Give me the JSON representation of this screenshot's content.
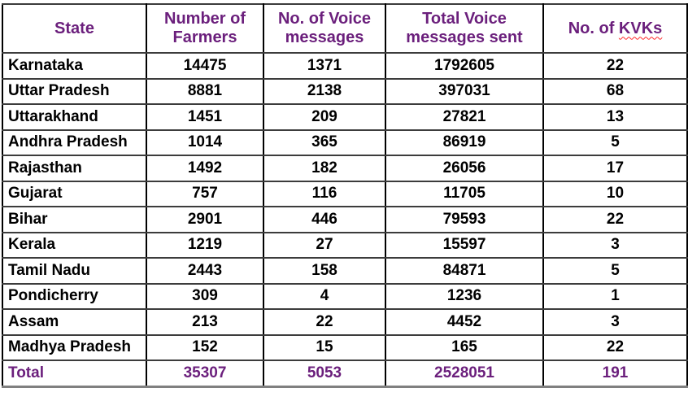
{
  "chart_data": {
    "type": "table",
    "columns": [
      "State",
      "Number of Farmers",
      "No. of Voice messages",
      "Total Voice messages sent",
      "No. of KVKs"
    ],
    "rows": [
      [
        "Karnataka",
        "14475",
        "1371",
        "1792605",
        "22"
      ],
      [
        "Uttar Pradesh",
        "8881",
        "2138",
        "397031",
        "68"
      ],
      [
        "Uttarakhand",
        "1451",
        "209",
        "27821",
        "13"
      ],
      [
        "Andhra Pradesh",
        "1014",
        "365",
        "86919",
        "5"
      ],
      [
        "Rajasthan",
        "1492",
        "182",
        "26056",
        "17"
      ],
      [
        "Gujarat",
        "757",
        "116",
        "11705",
        "10"
      ],
      [
        "Bihar",
        "2901",
        "446",
        "79593",
        "22"
      ],
      [
        "Kerala",
        "1219",
        "27",
        "15597",
        "3"
      ],
      [
        "Tamil Nadu",
        "2443",
        "158",
        "84871",
        "5"
      ],
      [
        "Pondicherry",
        "309",
        "4",
        "1236",
        "1"
      ],
      [
        "Assam",
        "213",
        "22",
        "4452",
        "3"
      ],
      [
        "Madhya Pradesh",
        "152",
        "15",
        "165",
        "22"
      ]
    ],
    "total_row": [
      "Total",
      "35307",
      "5053",
      "2528051",
      "191"
    ]
  },
  "header_kvks": {
    "prefix": "No. of ",
    "word": "KVKs"
  },
  "colors": {
    "header_text": "#6b1f7c",
    "total_text": "#6b1f7c",
    "body_text": "#000000",
    "grid_line": "#000000",
    "row_rule": "#3c3c3c",
    "bottom_border": "#808080",
    "spellcheck_squiggle": "#ff2a2a"
  }
}
